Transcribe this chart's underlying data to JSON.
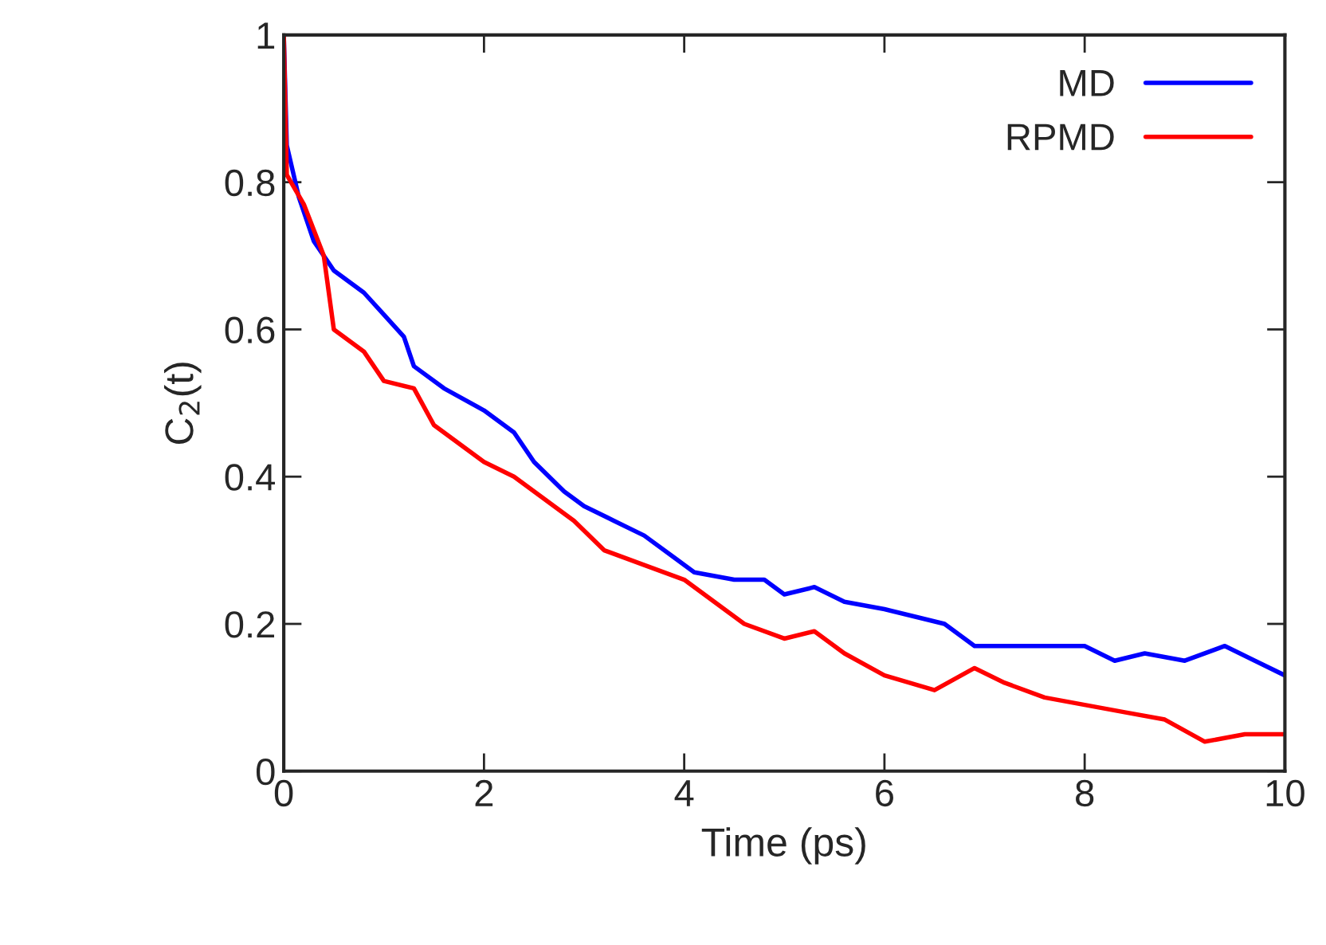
{
  "chart_data": {
    "type": "line",
    "xlabel": "Time (ps)",
    "ylabel": "C$_{2}$(t)",
    "xlim": [
      0,
      10
    ],
    "ylim": [
      0,
      1
    ],
    "xticks": [
      0,
      2,
      4,
      6,
      8,
      10
    ],
    "yticks": [
      0,
      0.2,
      0.4,
      0.6,
      0.8,
      1
    ],
    "legend": "top right",
    "grid": false,
    "line_style": "solid",
    "series": [
      {
        "name": "MD",
        "color": "#0000ff",
        "x": [
          0,
          0.03,
          0.15,
          0.3,
          0.5,
          0.8,
          1.0,
          1.2,
          1.3,
          1.6,
          2.0,
          2.3,
          2.5,
          2.8,
          3.0,
          3.3,
          3.6,
          3.9,
          4.1,
          4.5,
          4.8,
          5.0,
          5.3,
          5.6,
          6.0,
          6.3,
          6.6,
          6.9,
          7.3,
          7.6,
          8.0,
          8.3,
          8.6,
          9.0,
          9.4,
          9.7,
          10
        ],
        "values": [
          1,
          0.85,
          0.78,
          0.72,
          0.68,
          0.65,
          0.62,
          0.59,
          0.55,
          0.52,
          0.49,
          0.46,
          0.42,
          0.38,
          0.36,
          0.34,
          0.32,
          0.29,
          0.27,
          0.26,
          0.26,
          0.24,
          0.25,
          0.23,
          0.22,
          0.21,
          0.2,
          0.17,
          0.17,
          0.17,
          0.17,
          0.15,
          0.16,
          0.15,
          0.17,
          0.15,
          0.13
        ]
      },
      {
        "name": "RPMD",
        "color": "#ff0000",
        "x": [
          0,
          0.03,
          0.2,
          0.4,
          0.5,
          0.8,
          1.0,
          1.3,
          1.5,
          1.8,
          2.0,
          2.3,
          2.6,
          2.9,
          3.2,
          3.6,
          4.0,
          4.3,
          4.6,
          5.0,
          5.3,
          5.6,
          6.0,
          6.5,
          6.9,
          7.2,
          7.6,
          8.0,
          8.4,
          8.8,
          9.2,
          9.6,
          10
        ],
        "values": [
          1,
          0.81,
          0.77,
          0.7,
          0.6,
          0.57,
          0.53,
          0.52,
          0.47,
          0.44,
          0.42,
          0.4,
          0.37,
          0.34,
          0.3,
          0.28,
          0.26,
          0.23,
          0.2,
          0.18,
          0.19,
          0.16,
          0.13,
          0.11,
          0.14,
          0.12,
          0.1,
          0.09,
          0.08,
          0.07,
          0.04,
          0.05,
          0.05
        ]
      }
    ]
  }
}
